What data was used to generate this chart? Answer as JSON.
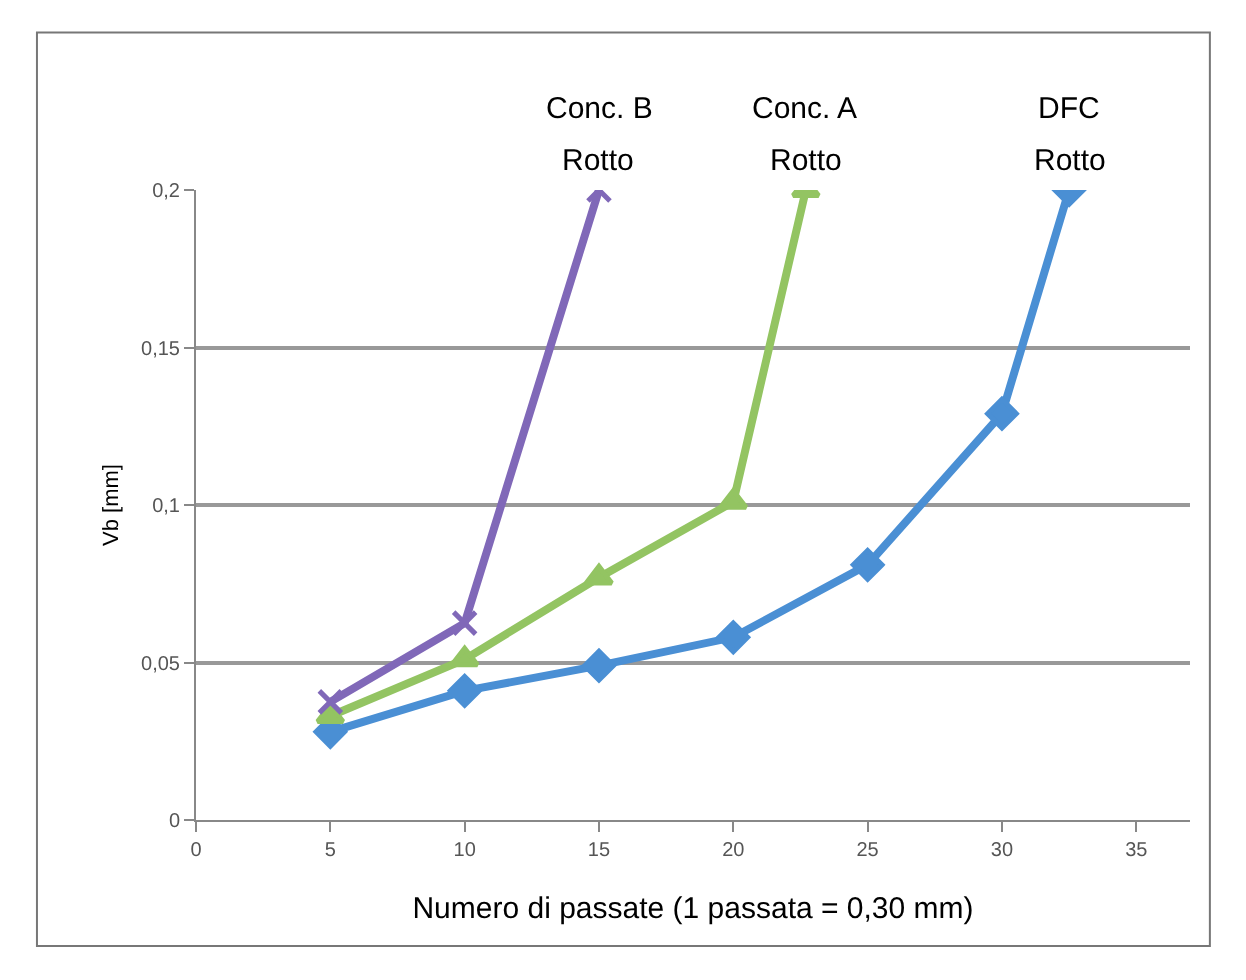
{
  "chart_data": {
    "type": "line",
    "xlabel": "Numero di passate (1 passata = 0,30 mm)",
    "ylabel": "Vb [mm]",
    "xlim": [
      0,
      37
    ],
    "xticks": [
      0,
      5,
      10,
      15,
      20,
      25,
      30,
      35
    ],
    "ylim": [
      0,
      0.2
    ],
    "yticks": [
      {
        "value": 0,
        "label": "0"
      },
      {
        "value": 0.05,
        "label": "0,05"
      },
      {
        "value": 0.1,
        "label": "0,1"
      },
      {
        "value": 0.15,
        "label": "0,15"
      },
      {
        "value": 0.2,
        "label": "0,2"
      }
    ],
    "grid": "y",
    "legend": false,
    "series": [
      {
        "name": "DFC",
        "color": "#4a8fd4",
        "marker": "diamond",
        "x": [
          5,
          10,
          15,
          20,
          25,
          30,
          32.5
        ],
        "values": [
          0.028,
          0.041,
          0.049,
          0.058,
          0.081,
          0.129,
          0.2
        ]
      },
      {
        "name": "Conc. A",
        "color": "#93c462",
        "marker": "triangle",
        "x": [
          5,
          10,
          15,
          20,
          22.7
        ],
        "values": [
          0.033,
          0.051,
          0.077,
          0.101,
          0.2
        ]
      },
      {
        "name": "Conc. B",
        "color": "#8068b8",
        "marker": "cross",
        "x": [
          5,
          10,
          15
        ],
        "values": [
          0.0375,
          0.0625,
          0.2
        ]
      }
    ],
    "annotations": [
      {
        "text": "Rotto",
        "x": 15,
        "y": 0.2
      },
      {
        "text": "Rotto",
        "x": 22.7,
        "y": 0.2
      },
      {
        "text": "Rotto",
        "x": 32.5,
        "y": 0.2
      }
    ]
  }
}
